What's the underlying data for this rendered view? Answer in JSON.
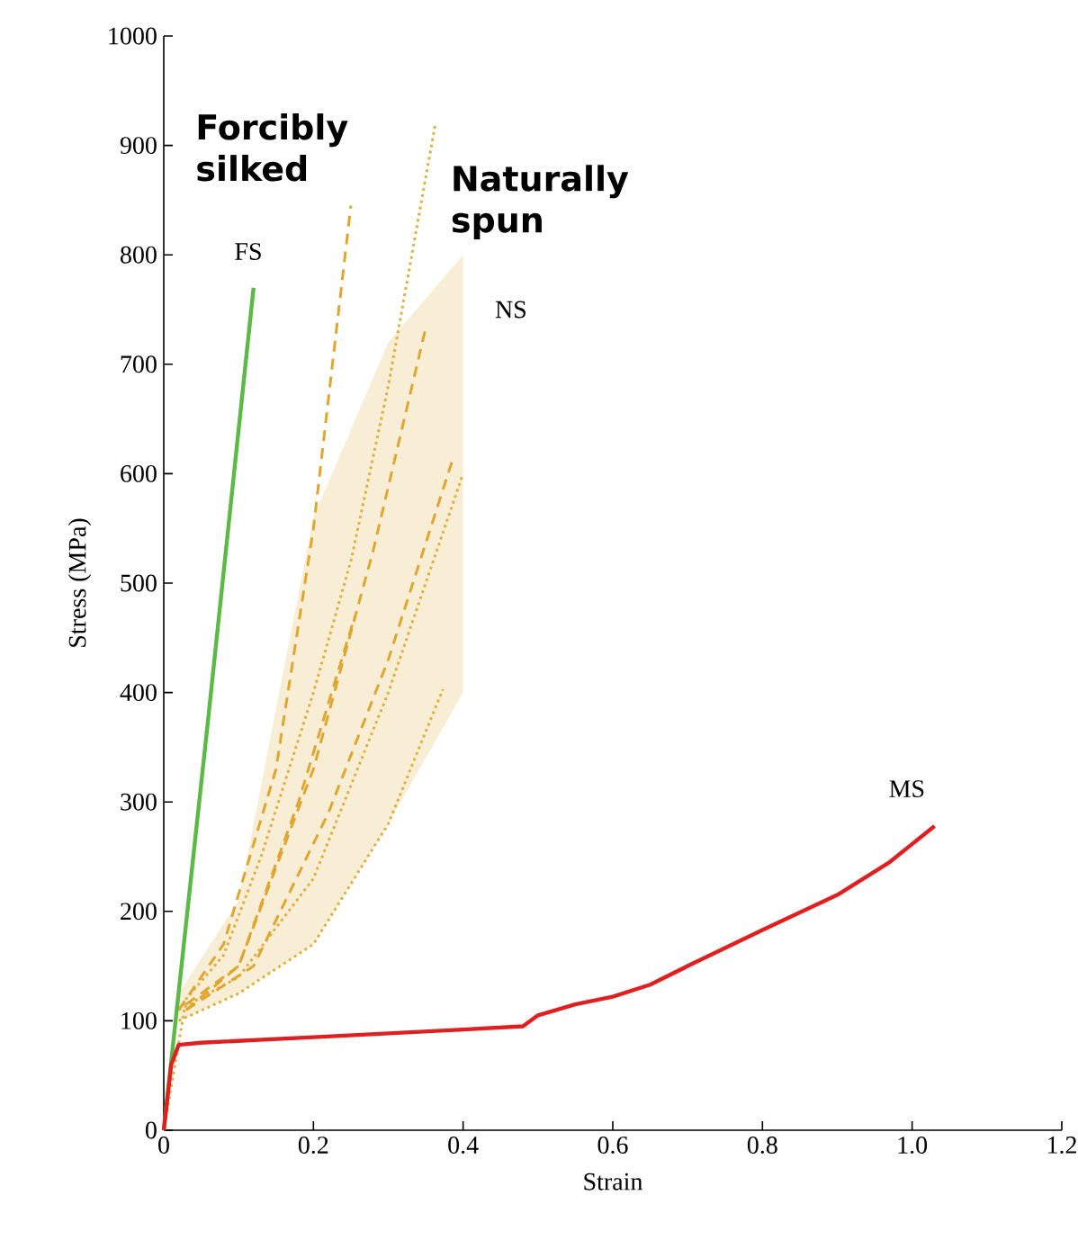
{
  "chart_data": {
    "type": "line",
    "xlabel": "Strain",
    "ylabel": "Stress (MPa)",
    "xlim": [
      0,
      1.2
    ],
    "ylim": [
      0,
      1000
    ],
    "xticks": [
      0,
      0.2,
      0.4,
      0.6,
      0.8,
      {
        "value": 1,
        "label": "1.0"
      },
      1.2
    ],
    "yticks": [
      0,
      100,
      200,
      300,
      400,
      500,
      600,
      700,
      800,
      900,
      1000
    ],
    "series": [
      {
        "color": "#e0b040",
        "line_style": "dotted",
        "x": [
          0.02,
          0.1,
          0.2,
          0.3,
          0.4
        ],
        "values": [
          110,
          140,
          230,
          400,
          600
        ],
        "lower": [
          100,
          125,
          170,
          280,
          400
        ],
        "upper": [
          125,
          210,
          560,
          720,
          800
        ]
      },
      {
        "color": "#e0b040",
        "line_style": "dotted",
        "x": [
          0,
          0.03,
          0.08,
          0.13,
          0.2,
          0.25,
          0.3,
          0.363
        ],
        "values": [
          0,
          120,
          160,
          250,
          400,
          520,
          680,
          920
        ]
      },
      {
        "color": "#e0b040",
        "line_style": "dotted",
        "x": [
          0.02,
          0.1,
          0.2,
          0.3,
          0.373
        ],
        "values": [
          100,
          125,
          170,
          280,
          403
        ]
      },
      {
        "color": "#e0a630",
        "line_style": "dashed",
        "x": [
          0.02,
          0.08,
          0.15,
          0.2,
          0.25
        ],
        "values": [
          110,
          170,
          330,
          550,
          845
        ]
      },
      {
        "color": "#e0a630",
        "line_style": "dashed",
        "x": [
          0.03,
          0.1,
          0.2,
          0.28,
          0.35
        ],
        "values": [
          110,
          150,
          330,
          530,
          733
        ]
      },
      {
        "color": "#e0a630",
        "line_style": "dashed",
        "x": [
          0.03,
          0.12,
          0.22,
          0.3,
          0.387
        ],
        "values": [
          110,
          150,
          290,
          430,
          615
        ]
      },
      {
        "color": "#e0a630",
        "line_style": "dashed",
        "x": [
          0.03,
          0.1,
          0.18,
          0.255
        ],
        "values": [
          115,
          150,
          300,
          469
        ]
      },
      {
        "color": "#5cb946",
        "line_style": "solid",
        "x": [
          0,
          0.06,
          0.12
        ],
        "values": [
          0,
          380,
          770
        ]
      },
      {
        "color": "#e02020",
        "line_style": "solid",
        "x": [
          0,
          0.01,
          0.02,
          0.05,
          0.2,
          0.4,
          0.48,
          0.5,
          0.55,
          0.6,
          0.65,
          0.7,
          0.8,
          0.9,
          0.97,
          1.03
        ],
        "values": [
          0,
          60,
          78,
          80,
          85,
          92,
          95,
          105,
          115,
          122,
          133,
          150,
          183,
          215,
          245,
          278
        ]
      }
    ],
    "annotations": [
      "Forcibly silked",
      "Naturally spun",
      "FS",
      "NS",
      "MS"
    ]
  }
}
